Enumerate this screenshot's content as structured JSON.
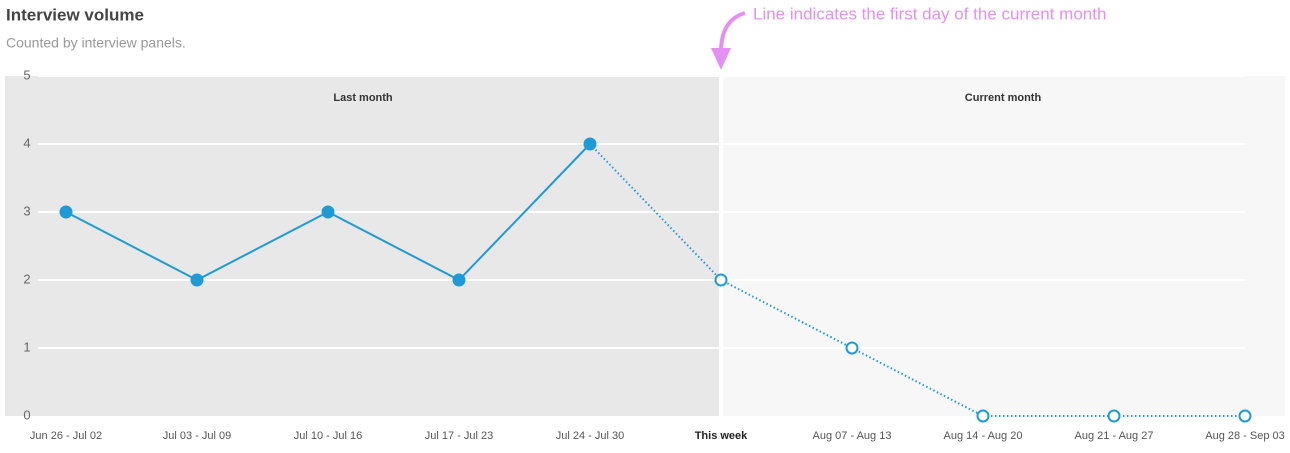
{
  "chart_data": {
    "type": "line",
    "title": "Interview volume",
    "subtitle": "Counted by interview panels.",
    "categories": [
      "Jun 26 - Jul 02",
      "Jul 03 - Jul 09",
      "Jul 10 - Jul 16",
      "Jul 17 - Jul 23",
      "Jul 24 - Jul 30",
      "This week",
      "Aug 07 - Aug 13",
      "Aug 14 - Aug 20",
      "Aug 21 - Aug 27",
      "Aug 28 - Sep 03"
    ],
    "values": [
      3,
      2,
      3,
      2,
      4,
      2,
      1,
      0,
      0,
      0
    ],
    "color": "#1e9bd7",
    "ylim": [
      0,
      5
    ],
    "yticks": [
      0,
      1,
      2,
      3,
      4,
      5
    ],
    "grid": true,
    "regions": [
      "Last month",
      "Current month"
    ],
    "annotation": {
      "text": "Line indicates the first day of the current month",
      "category": 5,
      "color": "#e48ff2"
    }
  }
}
